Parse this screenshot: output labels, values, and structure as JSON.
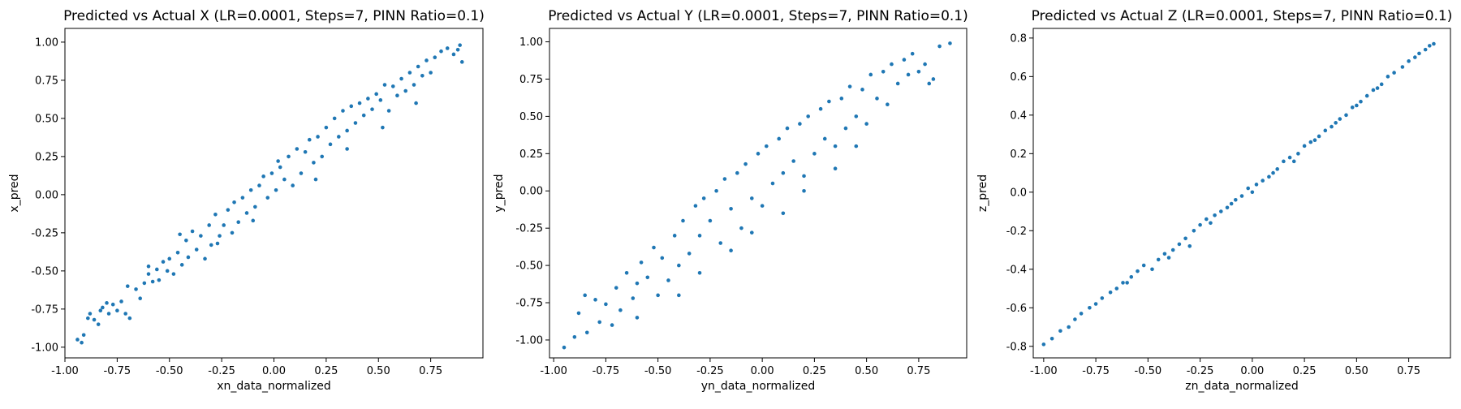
{
  "chart_data": [
    {
      "type": "scatter",
      "title": "Predicted vs Actual X (LR=0.0001, Steps=7, PINN Ratio=0.1)",
      "xlabel": "xn_data_normalized",
      "ylabel": "x_pred",
      "xlim": [
        -1.0,
        1.0
      ],
      "ylim": [
        -1.07,
        1.09
      ],
      "xticks": [
        "-1.00",
        "-0.75",
        "-0.50",
        "-0.25",
        "0.00",
        "0.25",
        "0.50",
        "0.75"
      ],
      "yticks": [
        "-1.00",
        "-0.75",
        "-0.50",
        "-0.25",
        "0.00",
        "0.25",
        "0.50",
        "0.75",
        "1.00"
      ],
      "color": "#1f77b4",
      "points": [
        [
          -0.94,
          -0.95
        ],
        [
          -0.92,
          -0.97
        ],
        [
          -0.91,
          -0.92
        ],
        [
          -0.89,
          -0.81
        ],
        [
          -0.88,
          -0.78
        ],
        [
          -0.86,
          -0.82
        ],
        [
          -0.84,
          -0.85
        ],
        [
          -0.83,
          -0.76
        ],
        [
          -0.82,
          -0.74
        ],
        [
          -0.8,
          -0.71
        ],
        [
          -0.79,
          -0.78
        ],
        [
          -0.77,
          -0.72
        ],
        [
          -0.75,
          -0.76
        ],
        [
          -0.73,
          -0.7
        ],
        [
          -0.71,
          -0.78
        ],
        [
          -0.7,
          -0.6
        ],
        [
          -0.69,
          -0.81
        ],
        [
          -0.66,
          -0.62
        ],
        [
          -0.64,
          -0.68
        ],
        [
          -0.62,
          -0.58
        ],
        [
          -0.6,
          -0.52
        ],
        [
          -0.58,
          -0.57
        ],
        [
          -0.56,
          -0.49
        ],
        [
          -0.55,
          -0.56
        ],
        [
          -0.53,
          -0.44
        ],
        [
          -0.51,
          -0.5
        ],
        [
          -0.5,
          -0.42
        ],
        [
          -0.48,
          -0.52
        ],
        [
          -0.46,
          -0.38
        ],
        [
          -0.44,
          -0.46
        ],
        [
          -0.42,
          -0.3
        ],
        [
          -0.41,
          -0.41
        ],
        [
          -0.39,
          -0.24
        ],
        [
          -0.37,
          -0.36
        ],
        [
          -0.35,
          -0.27
        ],
        [
          -0.33,
          -0.42
        ],
        [
          -0.31,
          -0.2
        ],
        [
          -0.3,
          -0.33
        ],
        [
          -0.28,
          -0.13
        ],
        [
          -0.26,
          -0.27
        ],
        [
          -0.24,
          -0.2
        ],
        [
          -0.22,
          -0.1
        ],
        [
          -0.2,
          -0.25
        ],
        [
          -0.19,
          -0.05
        ],
        [
          -0.17,
          -0.18
        ],
        [
          -0.15,
          -0.02
        ],
        [
          -0.13,
          -0.12
        ],
        [
          -0.11,
          0.03
        ],
        [
          -0.09,
          -0.08
        ],
        [
          -0.07,
          0.06
        ],
        [
          -0.05,
          0.12
        ],
        [
          -0.03,
          -0.02
        ],
        [
          -0.01,
          0.14
        ],
        [
          0.01,
          0.03
        ],
        [
          0.03,
          0.18
        ],
        [
          0.05,
          0.1
        ],
        [
          0.07,
          0.25
        ],
        [
          0.09,
          0.06
        ],
        [
          0.11,
          0.3
        ],
        [
          0.13,
          0.14
        ],
        [
          0.15,
          0.28
        ],
        [
          0.17,
          0.36
        ],
        [
          0.19,
          0.21
        ],
        [
          0.21,
          0.38
        ],
        [
          0.23,
          0.25
        ],
        [
          0.25,
          0.44
        ],
        [
          0.27,
          0.33
        ],
        [
          0.29,
          0.5
        ],
        [
          0.31,
          0.38
        ],
        [
          0.33,
          0.55
        ],
        [
          0.35,
          0.42
        ],
        [
          0.37,
          0.58
        ],
        [
          0.39,
          0.47
        ],
        [
          0.41,
          0.6
        ],
        [
          0.43,
          0.52
        ],
        [
          0.45,
          0.63
        ],
        [
          0.47,
          0.56
        ],
        [
          0.49,
          0.66
        ],
        [
          0.51,
          0.62
        ],
        [
          0.53,
          0.72
        ],
        [
          0.55,
          0.55
        ],
        [
          0.57,
          0.71
        ],
        [
          0.59,
          0.65
        ],
        [
          0.61,
          0.76
        ],
        [
          0.63,
          0.68
        ],
        [
          0.65,
          0.8
        ],
        [
          0.67,
          0.72
        ],
        [
          0.69,
          0.84
        ],
        [
          0.71,
          0.78
        ],
        [
          0.73,
          0.88
        ],
        [
          0.75,
          0.8
        ],
        [
          0.77,
          0.9
        ],
        [
          0.8,
          0.94
        ],
        [
          0.83,
          0.96
        ],
        [
          0.86,
          0.92
        ],
        [
          0.89,
          0.98
        ],
        [
          0.9,
          0.87
        ],
        [
          0.88,
          0.95
        ],
        [
          -0.6,
          -0.47
        ],
        [
          -0.45,
          -0.26
        ],
        [
          -0.27,
          -0.32
        ],
        [
          -0.1,
          -0.17
        ],
        [
          0.02,
          0.22
        ],
        [
          0.2,
          0.1
        ],
        [
          0.35,
          0.3
        ],
        [
          0.52,
          0.44
        ],
        [
          0.68,
          0.6
        ]
      ]
    },
    {
      "type": "scatter",
      "title": "Predicted vs Actual Y (LR=0.0001, Steps=7, PINN Ratio=0.1)",
      "xlabel": "yn_data_normalized",
      "ylabel": "y_pred",
      "xlim": [
        -1.02,
        0.98
      ],
      "ylim": [
        -1.12,
        1.09
      ],
      "xticks": [
        "-1.00",
        "-0.75",
        "-0.50",
        "-0.25",
        "0.00",
        "0.25",
        "0.50",
        "0.75"
      ],
      "yticks": [
        "-1.00",
        "-0.75",
        "-0.50",
        "-0.25",
        "0.00",
        "0.25",
        "0.50",
        "0.75",
        "1.00"
      ],
      "color": "#1f77b4",
      "points": [
        [
          -0.95,
          -1.05
        ],
        [
          -0.9,
          -0.98
        ],
        [
          -0.88,
          -0.82
        ],
        [
          -0.84,
          -0.95
        ],
        [
          -0.8,
          -0.73
        ],
        [
          -0.78,
          -0.88
        ],
        [
          -0.75,
          -0.76
        ],
        [
          -0.72,
          -0.9
        ],
        [
          -0.7,
          -0.65
        ],
        [
          -0.68,
          -0.8
        ],
        [
          -0.65,
          -0.55
        ],
        [
          -0.62,
          -0.72
        ],
        [
          -0.6,
          -0.62
        ],
        [
          -0.58,
          -0.48
        ],
        [
          -0.55,
          -0.58
        ],
        [
          -0.52,
          -0.38
        ],
        [
          -0.5,
          -0.7
        ],
        [
          -0.48,
          -0.45
        ],
        [
          -0.45,
          -0.6
        ],
        [
          -0.42,
          -0.3
        ],
        [
          -0.4,
          -0.5
        ],
        [
          -0.38,
          -0.2
        ],
        [
          -0.35,
          -0.42
        ],
        [
          -0.32,
          -0.1
        ],
        [
          -0.3,
          -0.3
        ],
        [
          -0.28,
          -0.05
        ],
        [
          -0.25,
          -0.2
        ],
        [
          -0.22,
          0.0
        ],
        [
          -0.2,
          -0.35
        ],
        [
          -0.18,
          0.08
        ],
        [
          -0.15,
          -0.12
        ],
        [
          -0.12,
          0.12
        ],
        [
          -0.1,
          -0.25
        ],
        [
          -0.08,
          0.18
        ],
        [
          -0.05,
          -0.05
        ],
        [
          -0.02,
          0.25
        ],
        [
          0.0,
          -0.1
        ],
        [
          0.02,
          0.3
        ],
        [
          0.05,
          0.05
        ],
        [
          0.08,
          0.35
        ],
        [
          0.1,
          0.12
        ],
        [
          0.12,
          0.42
        ],
        [
          0.15,
          0.2
        ],
        [
          0.18,
          0.45
        ],
        [
          0.2,
          0.1
        ],
        [
          0.22,
          0.5
        ],
        [
          0.25,
          0.25
        ],
        [
          0.28,
          0.55
        ],
        [
          0.3,
          0.35
        ],
        [
          0.32,
          0.6
        ],
        [
          0.35,
          0.3
        ],
        [
          0.38,
          0.62
        ],
        [
          0.4,
          0.42
        ],
        [
          0.42,
          0.7
        ],
        [
          0.45,
          0.5
        ],
        [
          0.48,
          0.68
        ],
        [
          0.5,
          0.45
        ],
        [
          0.52,
          0.78
        ],
        [
          0.55,
          0.62
        ],
        [
          0.58,
          0.8
        ],
        [
          0.6,
          0.58
        ],
        [
          0.62,
          0.85
        ],
        [
          0.65,
          0.72
        ],
        [
          0.68,
          0.88
        ],
        [
          0.7,
          0.78
        ],
        [
          0.72,
          0.92
        ],
        [
          0.75,
          0.8
        ],
        [
          0.78,
          0.85
        ],
        [
          0.8,
          0.72
        ],
        [
          0.82,
          0.75
        ],
        [
          0.85,
          0.97
        ],
        [
          0.9,
          0.99
        ],
        [
          -0.85,
          -0.7
        ],
        [
          -0.6,
          -0.85
        ],
        [
          -0.4,
          -0.7
        ],
        [
          -0.3,
          -0.55
        ],
        [
          -0.15,
          -0.4
        ],
        [
          -0.05,
          -0.28
        ],
        [
          0.1,
          -0.15
        ],
        [
          0.2,
          0.0
        ],
        [
          0.35,
          0.15
        ],
        [
          0.45,
          0.3
        ]
      ]
    },
    {
      "type": "scatter",
      "title": "Predicted vs Actual Z (LR=0.0001, Steps=7, PINN Ratio=0.1)",
      "xlabel": "zn_data_normalized",
      "ylabel": "z_pred",
      "xlim": [
        -1.05,
        0.95
      ],
      "ylim": [
        -0.86,
        0.85
      ],
      "xticks": [
        "-1.00",
        "-0.75",
        "-0.50",
        "-0.25",
        "0.00",
        "0.25",
        "0.50",
        "0.75"
      ],
      "yticks": [
        "-0.8",
        "-0.6",
        "-0.4",
        "-0.2",
        "0.0",
        "0.2",
        "0.4",
        "0.6",
        "0.8"
      ],
      "color": "#1f77b4",
      "points": [
        [
          -1.0,
          -0.79
        ],
        [
          -0.96,
          -0.76
        ],
        [
          -0.92,
          -0.72
        ],
        [
          -0.88,
          -0.7
        ],
        [
          -0.85,
          -0.66
        ],
        [
          -0.82,
          -0.63
        ],
        [
          -0.78,
          -0.6
        ],
        [
          -0.75,
          -0.58
        ],
        [
          -0.72,
          -0.55
        ],
        [
          -0.68,
          -0.52
        ],
        [
          -0.65,
          -0.5
        ],
        [
          -0.62,
          -0.47
        ],
        [
          -0.58,
          -0.44
        ],
        [
          -0.55,
          -0.41
        ],
        [
          -0.52,
          -0.38
        ],
        [
          -0.48,
          -0.4
        ],
        [
          -0.45,
          -0.35
        ],
        [
          -0.42,
          -0.32
        ],
        [
          -0.38,
          -0.3
        ],
        [
          -0.35,
          -0.27
        ],
        [
          -0.32,
          -0.24
        ],
        [
          -0.28,
          -0.2
        ],
        [
          -0.25,
          -0.17
        ],
        [
          -0.22,
          -0.14
        ],
        [
          -0.18,
          -0.12
        ],
        [
          -0.15,
          -0.1
        ],
        [
          -0.12,
          -0.08
        ],
        [
          -0.08,
          -0.04
        ],
        [
          -0.05,
          -0.02
        ],
        [
          -0.02,
          0.02
        ],
        [
          0.02,
          0.04
        ],
        [
          0.05,
          0.06
        ],
        [
          0.08,
          0.08
        ],
        [
          0.12,
          0.12
        ],
        [
          0.15,
          0.16
        ],
        [
          0.18,
          0.18
        ],
        [
          0.22,
          0.2
        ],
        [
          0.25,
          0.24
        ],
        [
          0.28,
          0.26
        ],
        [
          0.32,
          0.29
        ],
        [
          0.35,
          0.32
        ],
        [
          0.38,
          0.34
        ],
        [
          0.42,
          0.38
        ],
        [
          0.45,
          0.4
        ],
        [
          0.48,
          0.44
        ],
        [
          0.52,
          0.47
        ],
        [
          0.55,
          0.5
        ],
        [
          0.58,
          0.53
        ],
        [
          0.62,
          0.56
        ],
        [
          0.65,
          0.6
        ],
        [
          0.68,
          0.62
        ],
        [
          0.72,
          0.65
        ],
        [
          0.75,
          0.68
        ],
        [
          0.78,
          0.7
        ],
        [
          0.8,
          0.72
        ],
        [
          0.83,
          0.74
        ],
        [
          0.85,
          0.76
        ],
        [
          0.87,
          0.77
        ],
        [
          -0.3,
          -0.28
        ],
        [
          -0.1,
          -0.06
        ],
        [
          0.1,
          0.1
        ],
        [
          0.3,
          0.27
        ],
        [
          0.5,
          0.45
        ],
        [
          -0.6,
          -0.47
        ],
        [
          0.2,
          0.16
        ],
        [
          0.4,
          0.36
        ],
        [
          -0.2,
          -0.16
        ],
        [
          0.0,
          0.0
        ],
        [
          0.6,
          0.54
        ],
        [
          -0.4,
          -0.34
        ]
      ]
    }
  ]
}
